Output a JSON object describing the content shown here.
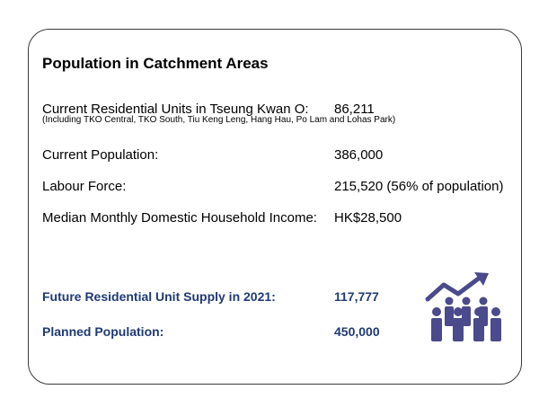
{
  "title": "Population in Catchment Areas",
  "rows": [
    {
      "label": "Current Residential Units in Tseung Kwan O:",
      "value": "86,211"
    },
    {
      "label": "Current Population:",
      "value": "386,000"
    },
    {
      "label": "Labour Force:",
      "value": "215,520 (56% of population)"
    },
    {
      "label": "Median Monthly Domestic Household Income:",
      "value": "HK$28,500"
    }
  ],
  "note": "(Including TKO Central, TKO South, Tiu Keng Leng, Hang Hau, Po Lam and Lohas Park)",
  "future": [
    {
      "label": "Future Residential Unit Supply in 2021:",
      "value": "117,777"
    },
    {
      "label": "Planned Population:",
      "value": "450,000"
    }
  ],
  "colors": {
    "accent": "#1f3a73",
    "icon": "#4a4a8c"
  },
  "icon": "population-growth-icon"
}
